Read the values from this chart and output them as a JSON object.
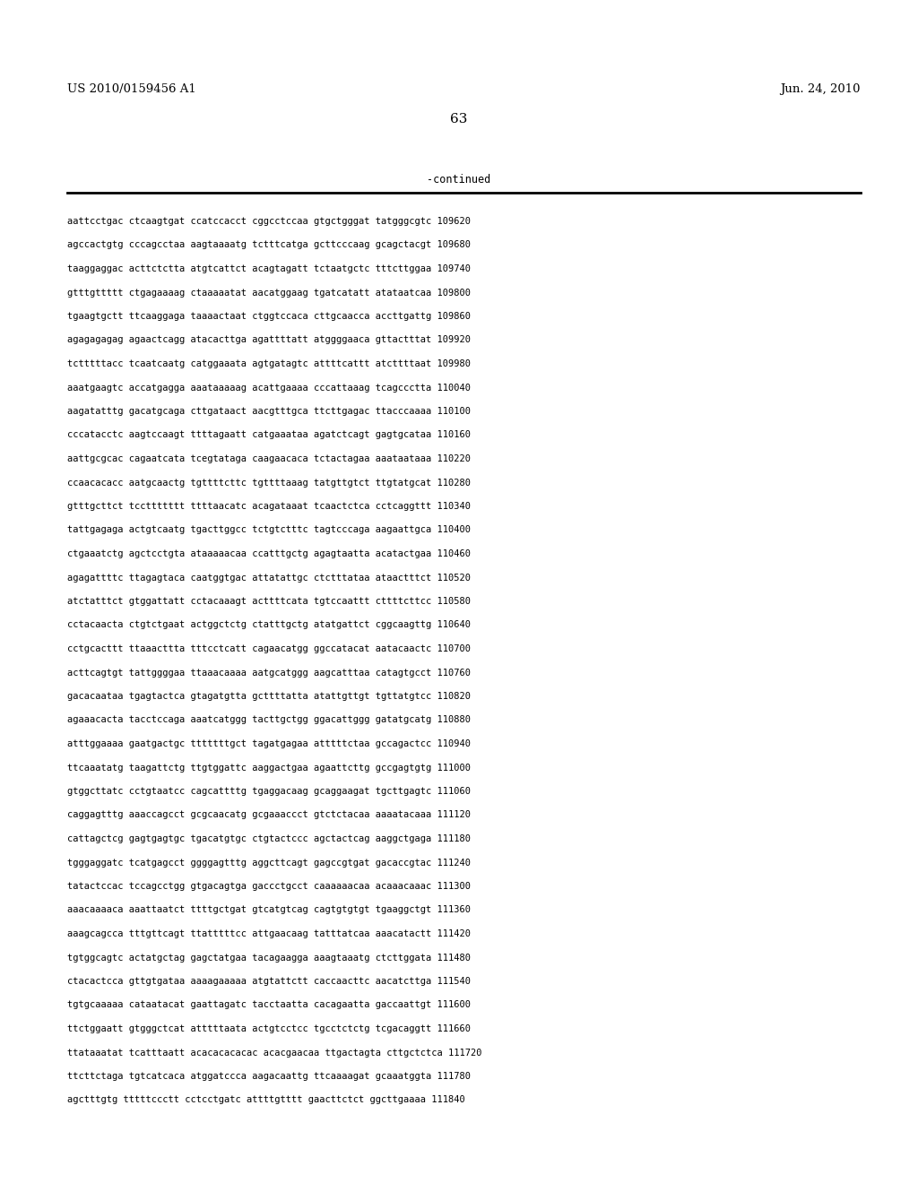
{
  "header_left": "US 2010/0159456 A1",
  "header_right": "Jun. 24, 2010",
  "page_number": "63",
  "continued_label": "-continued",
  "background_color": "#ffffff",
  "text_color": "#000000",
  "lines": [
    "aattcctgac ctcaagtgat ccatccacct cggcctccaa gtgctgggat tatgggcgtc 109620",
    "agccactgtg cccagcctaa aagtaaaatg tctttcatga gcttcccaag gcagctacgt 109680",
    "taaggaggac acttctctta atgtcattct acagtagatt tctaatgctc tttcttggaa 109740",
    "gtttgttttt ctgagaaaag ctaaaaatat aacatggaag tgatcatatt atataatcaa 109800",
    "tgaagtgctt ttcaaggaga taaaactaat ctggtccaca cttgcaacca accttgattg 109860",
    "agagagagag agaactcagg atacacttga agattttatt atggggaaca gttactttat 109920",
    "tctttttacc tcaatcaatg catggaaata agtgatagtc attttcattt atcttttaat 109980",
    "aaatgaagtc accatgagga aaataaaaag acattgaaaa cccattaaag tcagccctta 110040",
    "aagatatttg gacatgcaga cttgataact aacgtttgca ttcttgagac ttacccaaaa 110100",
    "cccatacctc aagtccaagt ttttagaatt catgaaataa agatctcagt gagtgcataa 110160",
    "aattgcgcac cagaatcata tcegtataga caagaacaca tctactagaa aaataataaa 110220",
    "ccaacacacc aatgcaactg tgttttcttc tgttttaaag tatgttgtct ttgtatgcat 110280",
    "gtttgcttct tccttttttt ttttaacatc acagataaat tcaactctca cctcaggttt 110340",
    "tattgagaga actgtcaatg tgacttggcc tctgtctttc tagtcccaga aagaattgca 110400",
    "ctgaaatctg agctcctgta ataaaaacaa ccatttgctg agagtaatta acatactgaa 110460",
    "agagattttc ttagagtaca caatggtgac attatattgc ctctttataa ataactttct 110520",
    "atctatttct gtggattatt cctacaaagt acttttcata tgtccaattt cttttcttcc 110580",
    "cctacaacta ctgtctgaat actggctctg ctatttgctg atatgattct cggcaagttg 110640",
    "cctgcacttt ttaaacttta tttcctcatt cagaacatgg ggccatacat aatacaactc 110700",
    "acttcagtgt tattggggaa ttaaacaaaa aatgcatggg aagcatttaa catagtgcct 110760",
    "gacacaataa tgagtactca gtagatgtta gcttttatta atattgttgt tgttatgtcc 110820",
    "agaaacacta tacctccaga aaatcatggg tacttgctgg ggacattggg gatatgcatg 110880",
    "atttggaaaa gaatgactgc tttttttgct tagatgagaa atttttctaa gccagactcc 110940",
    "ttcaaatatg taagattctg ttgtggattc aaggactgaa agaattcttg gccgagtgtg 111000",
    "gtggcttatc cctgtaatcc cagcattttg tgaggacaag gcaggaagat tgcttgagtc 111060",
    "caggagtttg aaaccagcct gcgcaacatg gcgaaaccct gtctctacaa aaaatacaaa 111120",
    "cattagctcg gagtgagtgc tgacatgtgc ctgtactccc agctactcag aaggctgaga 111180",
    "tgggaggatc tcatgagcct ggggagtttg aggcttcagt gagccgtgat gacaccgtac 111240",
    "tatactccac tccagcctgg gtgacagtga gaccctgcct caaaaaacaa acaaacaaac 111300",
    "aaacaaaaca aaattaatct ttttgctgat gtcatgtcag cagtgtgtgt tgaaggctgt 111360",
    "aaagcagcca tttgttcagt ttatttttcc attgaacaag tatttatcaa aaacatactt 111420",
    "tgtggcagtc actatgctag gagctatgaa tacagaagga aaagtaaatg ctcttggata 111480",
    "ctacactcca gttgtgataa aaaagaaaaa atgtattctt caccaacttc aacatcttga 111540",
    "tgtgcaaaaa cataatacat gaattagatc tacctaatta cacagaatta gaccaattgt 111600",
    "ttctggaatt gtgggctcat atttttaata actgtcctcc tgcctctctg tcgacaggtt 111660",
    "ttataaatat tcatttaatt acacacacacac acacgaacaa ttgactagta cttgctctca 111720",
    "ttcttctaga tgtcatcaca atggatccca aagacaattg ttcaaaagat gcaaatggta 111780",
    "agctttgtg tttttccctt cctcctgatc attttgtttt gaacttctct ggcttgaaaa 111840"
  ]
}
